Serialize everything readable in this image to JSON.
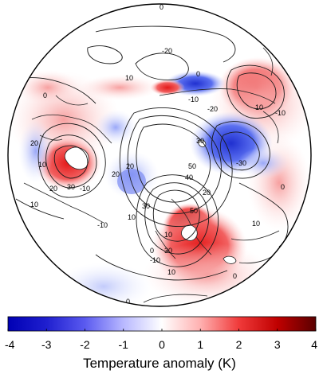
{
  "map": {
    "projection": "polar stereographic (Northern Hemisphere)",
    "field": "temperature anomaly (shaded) with contour lines",
    "contour_labels": [
      "0",
      "-20",
      "10",
      "0",
      "-10",
      "-20",
      "10",
      "-10",
      "20",
      "10",
      "0",
      "10",
      "20",
      "30",
      "-10",
      "20",
      "50",
      "30",
      "40",
      "20",
      "10",
      "30",
      "50",
      "-30",
      "0",
      "20",
      "10",
      "-10",
      "10",
      "30",
      "0",
      "-10",
      "0",
      "10",
      "0"
    ]
  },
  "colorbar": {
    "title": "Temperature anomaly (K)",
    "min": -4,
    "max": 4,
    "ticks": [
      "-4",
      "-3",
      "-2",
      "-1",
      "0",
      "1",
      "2",
      "3",
      "4"
    ],
    "colors": [
      "#0000b4",
      "#3f3fe6",
      "#a0a0ff",
      "#ffffff",
      "#ff9a9a",
      "#e02020",
      "#a00000",
      "#5a0000"
    ]
  },
  "anomaly_colors": {
    "strong_warm": "#8b0000",
    "warm": "#e8202a",
    "light_warm": "#f6b0b0",
    "strong_cold": "#2233cc",
    "cold": "#5b6cf0",
    "light_cold": "#b8c4ff"
  }
}
